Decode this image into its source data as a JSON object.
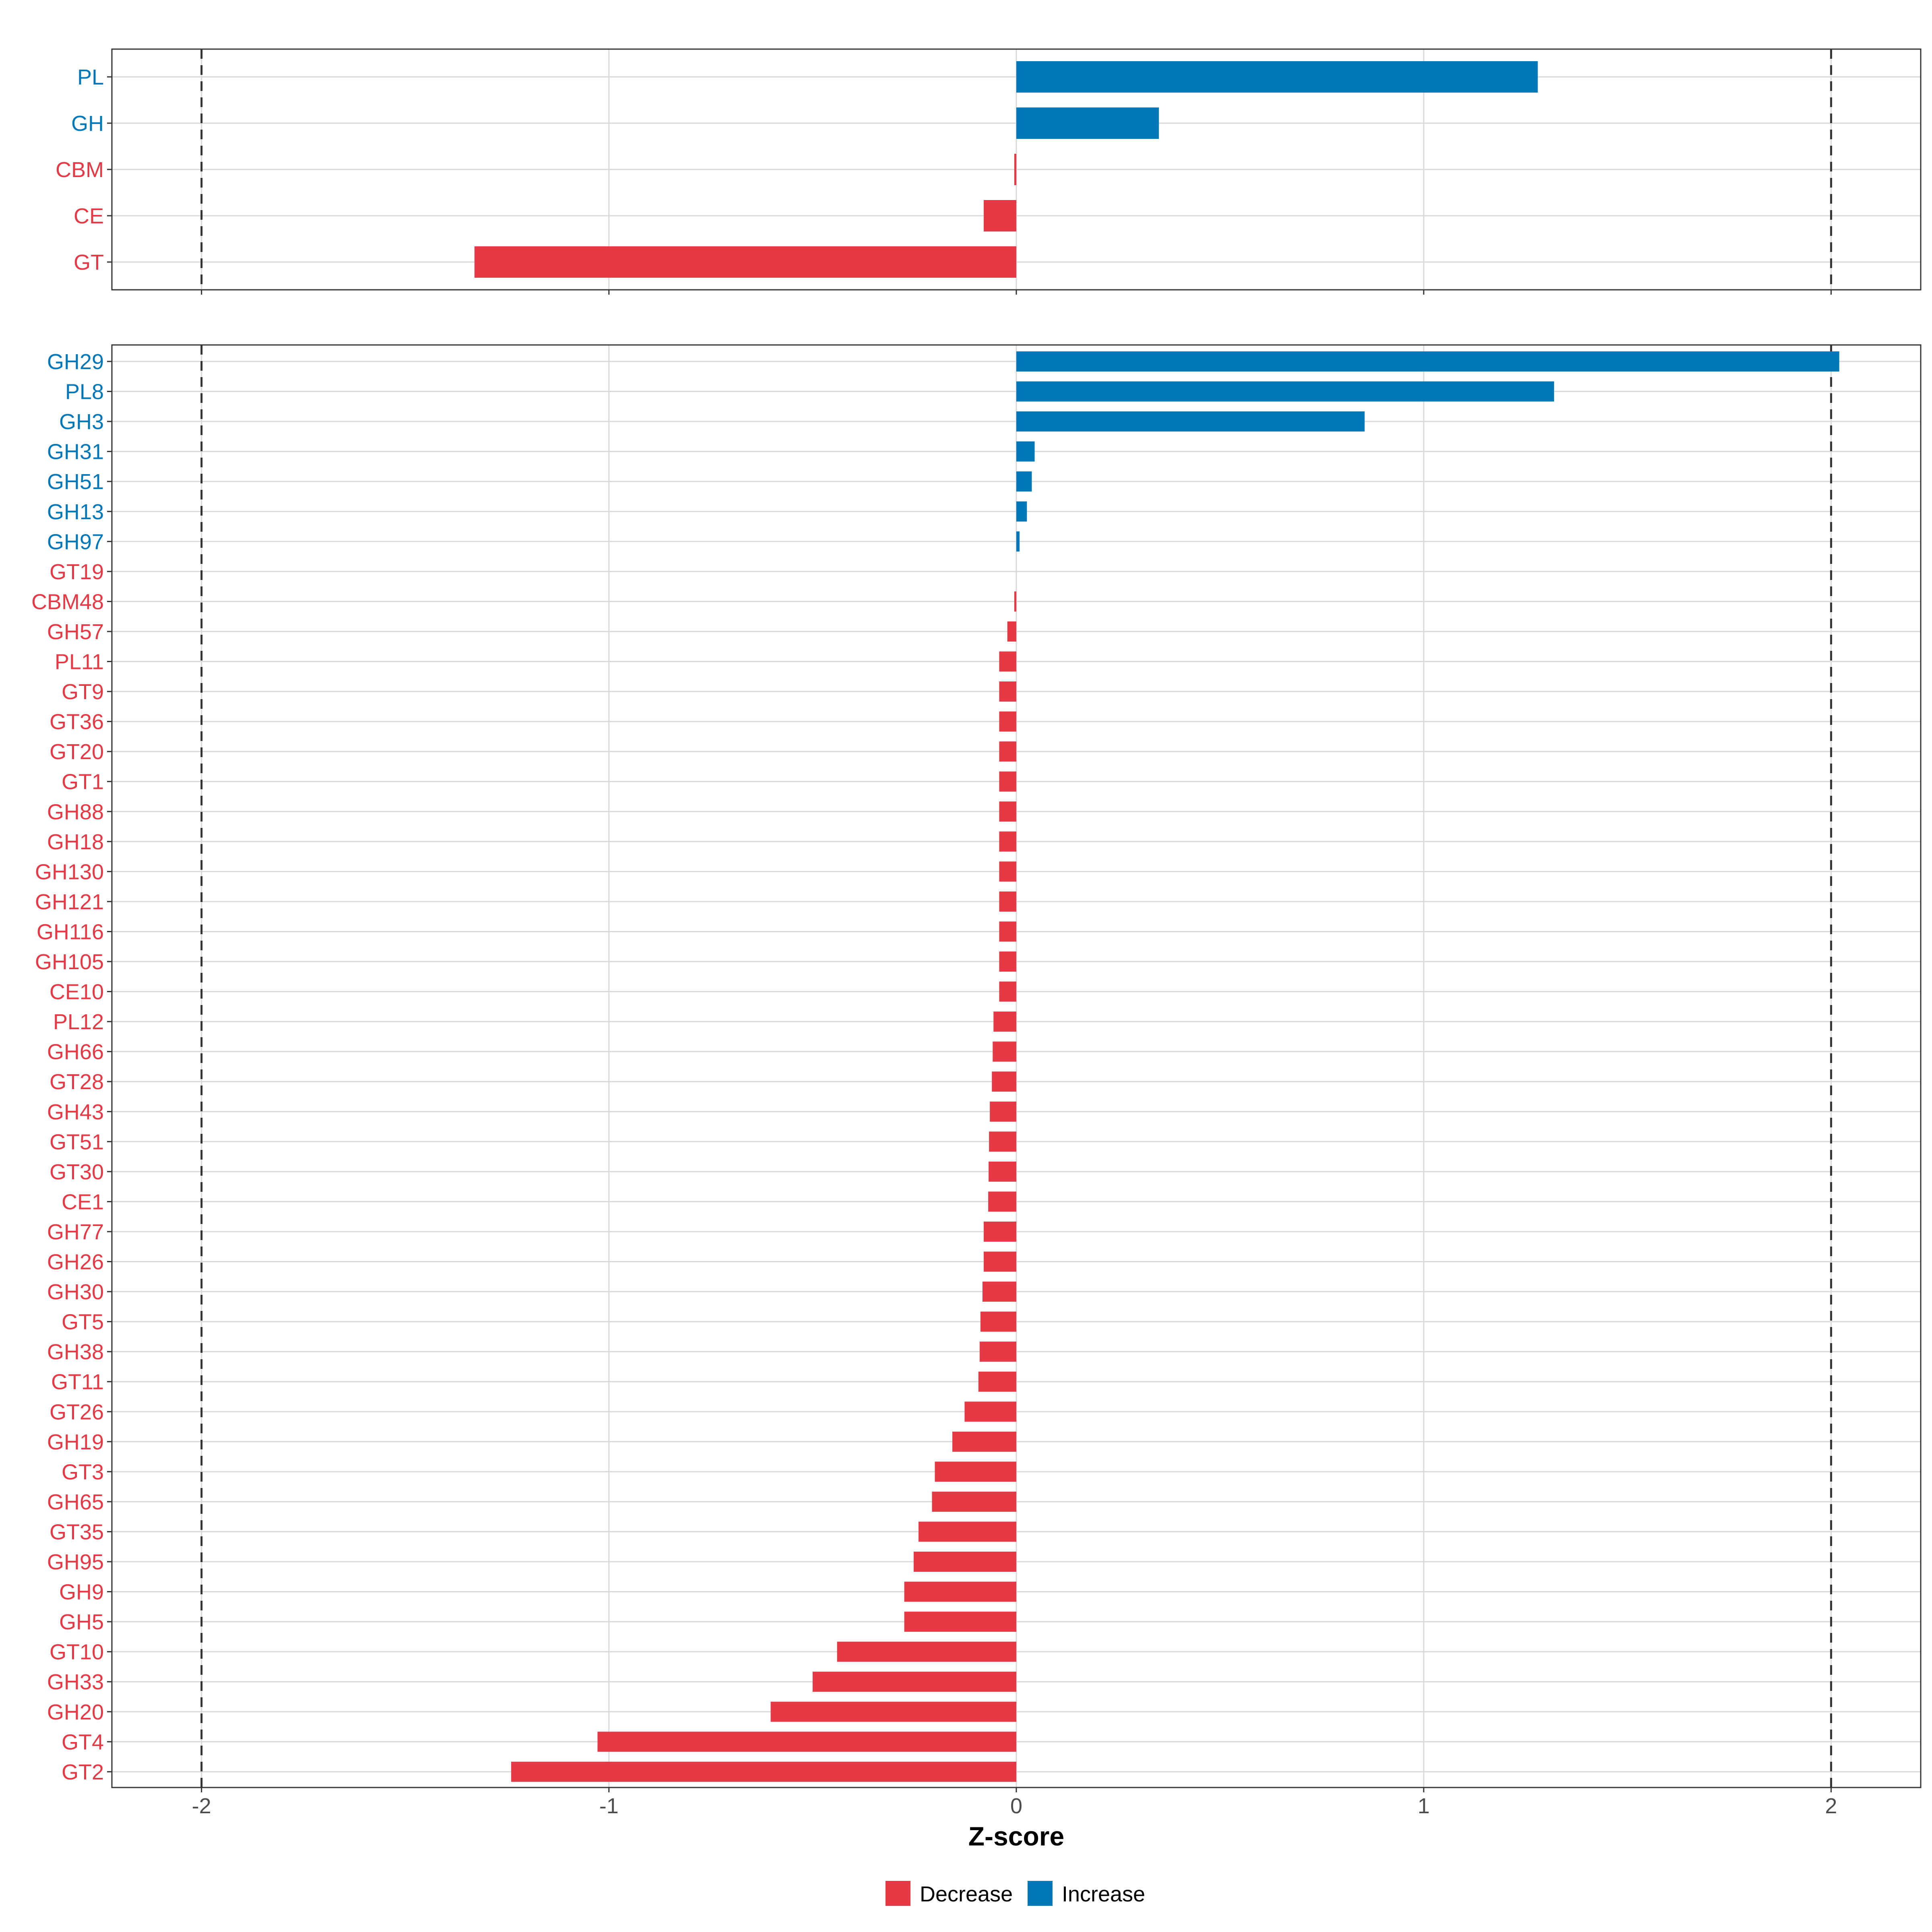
{
  "colors": {
    "decrease": "#E63946",
    "increase": "#0077B6"
  },
  "chart_data": [
    {
      "type": "bar",
      "orientation": "horizontal",
      "panel": "top",
      "categories": [
        "PL",
        "GH",
        "CBM",
        "CE",
        "GT"
      ],
      "values": [
        1.28,
        0.35,
        -0.005,
        -0.08,
        -1.33
      ],
      "xlim": [
        -2.22,
        2.22
      ],
      "reference_lines": [
        -2,
        2
      ],
      "grid": true
    },
    {
      "type": "bar",
      "orientation": "horizontal",
      "panel": "bottom",
      "categories": [
        "GH29",
        "PL8",
        "GH3",
        "GH31",
        "GH51",
        "GH13",
        "GH97",
        "GT19",
        "CBM48",
        "GH57",
        "PL11",
        "GT9",
        "GT36",
        "GT20",
        "GT1",
        "GH88",
        "GH18",
        "GH130",
        "GH121",
        "GH116",
        "GH105",
        "CE10",
        "PL12",
        "GH66",
        "GT28",
        "GH43",
        "GT51",
        "GT30",
        "CE1",
        "GH77",
        "GH26",
        "GH30",
        "GT5",
        "GH38",
        "GT11",
        "GT26",
        "GH19",
        "GT3",
        "GH65",
        "GT35",
        "GH95",
        "GH9",
        "GH5",
        "GT10",
        "GH33",
        "GH20",
        "GT4",
        "GT2"
      ],
      "values": [
        2.02,
        1.32,
        0.855,
        0.045,
        0.038,
        0.026,
        0.008,
        0,
        -0.005,
        -0.022,
        -0.042,
        -0.042,
        -0.042,
        -0.042,
        -0.042,
        -0.042,
        -0.042,
        -0.042,
        -0.042,
        -0.042,
        -0.042,
        -0.042,
        -0.056,
        -0.058,
        -0.06,
        -0.065,
        -0.067,
        -0.068,
        -0.069,
        -0.08,
        -0.08,
        -0.083,
        -0.088,
        -0.09,
        -0.093,
        -0.127,
        -0.157,
        -0.2,
        -0.207,
        -0.24,
        -0.252,
        -0.275,
        -0.275,
        -0.44,
        -0.5,
        -0.603,
        -1.028,
        -1.24
      ],
      "xlim": [
        -2.22,
        2.22
      ],
      "reference_lines": [
        -2,
        2
      ],
      "grid": true,
      "xticks": [
        -2,
        -1,
        0,
        1,
        2
      ],
      "xtick_labels": [
        "-2",
        "-1",
        "0",
        "1",
        "2"
      ],
      "xlabel": "Z-score"
    }
  ],
  "legend": {
    "position": "bottom",
    "items": [
      {
        "label": "Decrease",
        "color_key": "decrease"
      },
      {
        "label": "Increase",
        "color_key": "increase"
      }
    ]
  }
}
